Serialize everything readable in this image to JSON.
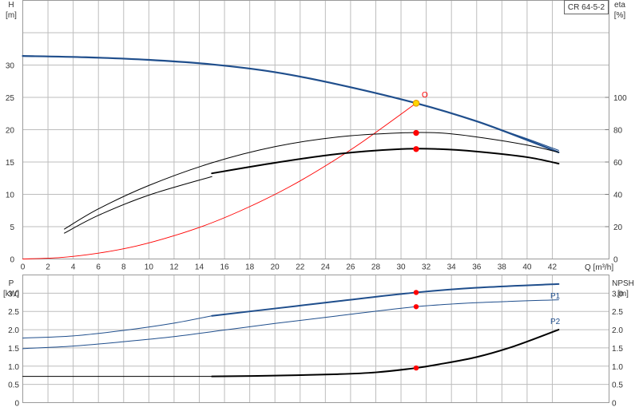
{
  "colors": {
    "blue": "#1f4e8c",
    "red": "#ff0000",
    "black": "#000000",
    "yellow": "#ffd700",
    "grid": "#bdbdbd"
  },
  "chart_data": [
    {
      "type": "line",
      "pump_label": "CR 64-5-2",
      "xlabel": "Q [m³/h]",
      "x_ticks": [
        0,
        2,
        4,
        6,
        8,
        10,
        12,
        14,
        16,
        18,
        20,
        22,
        24,
        26,
        28,
        30,
        32,
        34,
        36,
        38,
        40,
        42
      ],
      "xlim": [
        0,
        46.5
      ],
      "left_axis": {
        "label_top": "H",
        "label_unit": "[m]",
        "ylim": [
          0,
          40
        ],
        "ticks": [
          0,
          5,
          10,
          15,
          20,
          25,
          30
        ]
      },
      "right_axis": {
        "label_top": "eta",
        "label_unit": "[%]",
        "ylim": [
          0,
          160
        ],
        "ticks": [
          0,
          20,
          40,
          60,
          80,
          100
        ]
      },
      "system_curve_label": "O",
      "series": [
        {
          "key": "head",
          "axis": "left",
          "color": "#1f4e8c",
          "width": 2.2,
          "x": [
            0,
            5,
            10,
            15,
            20,
            25,
            31.2,
            36,
            40,
            42.5
          ],
          "y": [
            31.4,
            31.2,
            30.8,
            30.1,
            28.9,
            27.0,
            24.1,
            21.3,
            18.4,
            16.5
          ]
        },
        {
          "key": "head-min",
          "axis": "left",
          "color": "#1f4e8c",
          "width": 1.1,
          "x": [
            36,
            40,
            42.5
          ],
          "y": [
            21.3,
            18.6,
            16.8
          ]
        },
        {
          "key": "system",
          "axis": "left",
          "color": "#ff0000",
          "width": 0.9,
          "x": [
            0,
            3,
            6,
            9,
            12,
            15,
            18,
            21,
            24,
            27,
            31.2
          ],
          "y": [
            0,
            0.22,
            0.9,
            2.0,
            3.6,
            5.6,
            8.1,
            11.0,
            14.4,
            18.2,
            24.1
          ]
        },
        {
          "key": "eta-upper",
          "axis": "right",
          "color": "#000000",
          "width": 1.0,
          "x": [
            3.3,
            6,
            10,
            15,
            20,
            25,
            30,
            33,
            36,
            40,
            42.5
          ],
          "y": [
            18.5,
            31,
            45.5,
            59.5,
            69.5,
            75.5,
            78,
            78,
            75.5,
            70.5,
            66
          ]
        },
        {
          "key": "eta-lower",
          "axis": "right",
          "color": "#000000",
          "width": 1.0,
          "x": [
            3.3,
            6,
            10,
            15
          ],
          "y": [
            16,
            27,
            39.5,
            51
          ]
        },
        {
          "key": "eta",
          "axis": "right",
          "color": "#000000",
          "width": 2.0,
          "x": [
            15,
            20,
            25,
            30,
            33,
            36,
            40,
            42.5
          ],
          "y": [
            53,
            59.5,
            65,
            68,
            68,
            66.5,
            63,
            59
          ]
        }
      ],
      "points": [
        {
          "key": "duty-head",
          "axis": "left",
          "x": 31.2,
          "y": 24.1,
          "color": "#ffd700"
        },
        {
          "key": "duty-eta-upper",
          "axis": "right",
          "x": 31.2,
          "y": 78,
          "color": "#ff0000"
        },
        {
          "key": "duty-eta",
          "axis": "right",
          "x": 31.2,
          "y": 68,
          "color": "#ff0000"
        }
      ]
    },
    {
      "type": "line",
      "xlim": [
        0,
        46.5
      ],
      "left_axis": {
        "label_top": "P",
        "label_unit": "[kW]",
        "ylim": [
          0,
          3.5
        ],
        "ticks": [
          0,
          0.5,
          1.0,
          1.5,
          2.0,
          2.5,
          3.0
        ]
      },
      "right_axis": {
        "label_top": "NPSH",
        "label_unit": "[m]",
        "ylim": [
          0,
          3.5
        ],
        "ticks": [
          0,
          0.5,
          1.0,
          1.5,
          2.0,
          2.5,
          3.0
        ]
      },
      "tick_labels": [
        "0",
        "0.5",
        "1.0",
        "1.5",
        "2.0",
        "2.5",
        "3.0"
      ],
      "series": [
        {
          "key": "p1",
          "name": "P1",
          "axis": "left",
          "color": "#1f4e8c",
          "width": 2.0,
          "x": [
            15,
            20,
            25,
            31.2,
            36,
            42.5
          ],
          "y": [
            2.38,
            2.58,
            2.78,
            3.02,
            3.15,
            3.25
          ]
        },
        {
          "key": "p1-thin",
          "axis": "left",
          "color": "#1f4e8c",
          "width": 1.0,
          "x": [
            0,
            4,
            8,
            12,
            15
          ],
          "y": [
            1.77,
            1.83,
            1.98,
            2.18,
            2.38
          ]
        },
        {
          "key": "p2",
          "name": "P2",
          "axis": "left",
          "color": "#1f4e8c",
          "width": 1.0,
          "x": [
            0,
            4,
            8,
            12,
            16,
            20,
            25,
            31.2,
            36,
            42.5
          ],
          "y": [
            1.48,
            1.55,
            1.67,
            1.81,
            1.99,
            2.17,
            2.38,
            2.63,
            2.74,
            2.82
          ]
        },
        {
          "key": "npsh-thin",
          "axis": "right",
          "color": "#000000",
          "width": 1.0,
          "x": [
            0,
            15
          ],
          "y": [
            0.72,
            0.72
          ]
        },
        {
          "key": "npsh",
          "axis": "right",
          "color": "#000000",
          "width": 2.0,
          "x": [
            15,
            20,
            25,
            28,
            31.2,
            33,
            36,
            39,
            42.5
          ],
          "y": [
            0.72,
            0.74,
            0.78,
            0.83,
            0.95,
            1.05,
            1.25,
            1.55,
            2.0
          ]
        }
      ],
      "points": [
        {
          "key": "duty-p1",
          "axis": "left",
          "x": 31.2,
          "y": 3.02,
          "color": "#ff0000"
        },
        {
          "key": "duty-p2",
          "axis": "left",
          "x": 31.2,
          "y": 2.63,
          "color": "#ff0000"
        },
        {
          "key": "duty-npsh",
          "axis": "right",
          "x": 31.2,
          "y": 0.95,
          "color": "#ff0000"
        }
      ]
    }
  ]
}
